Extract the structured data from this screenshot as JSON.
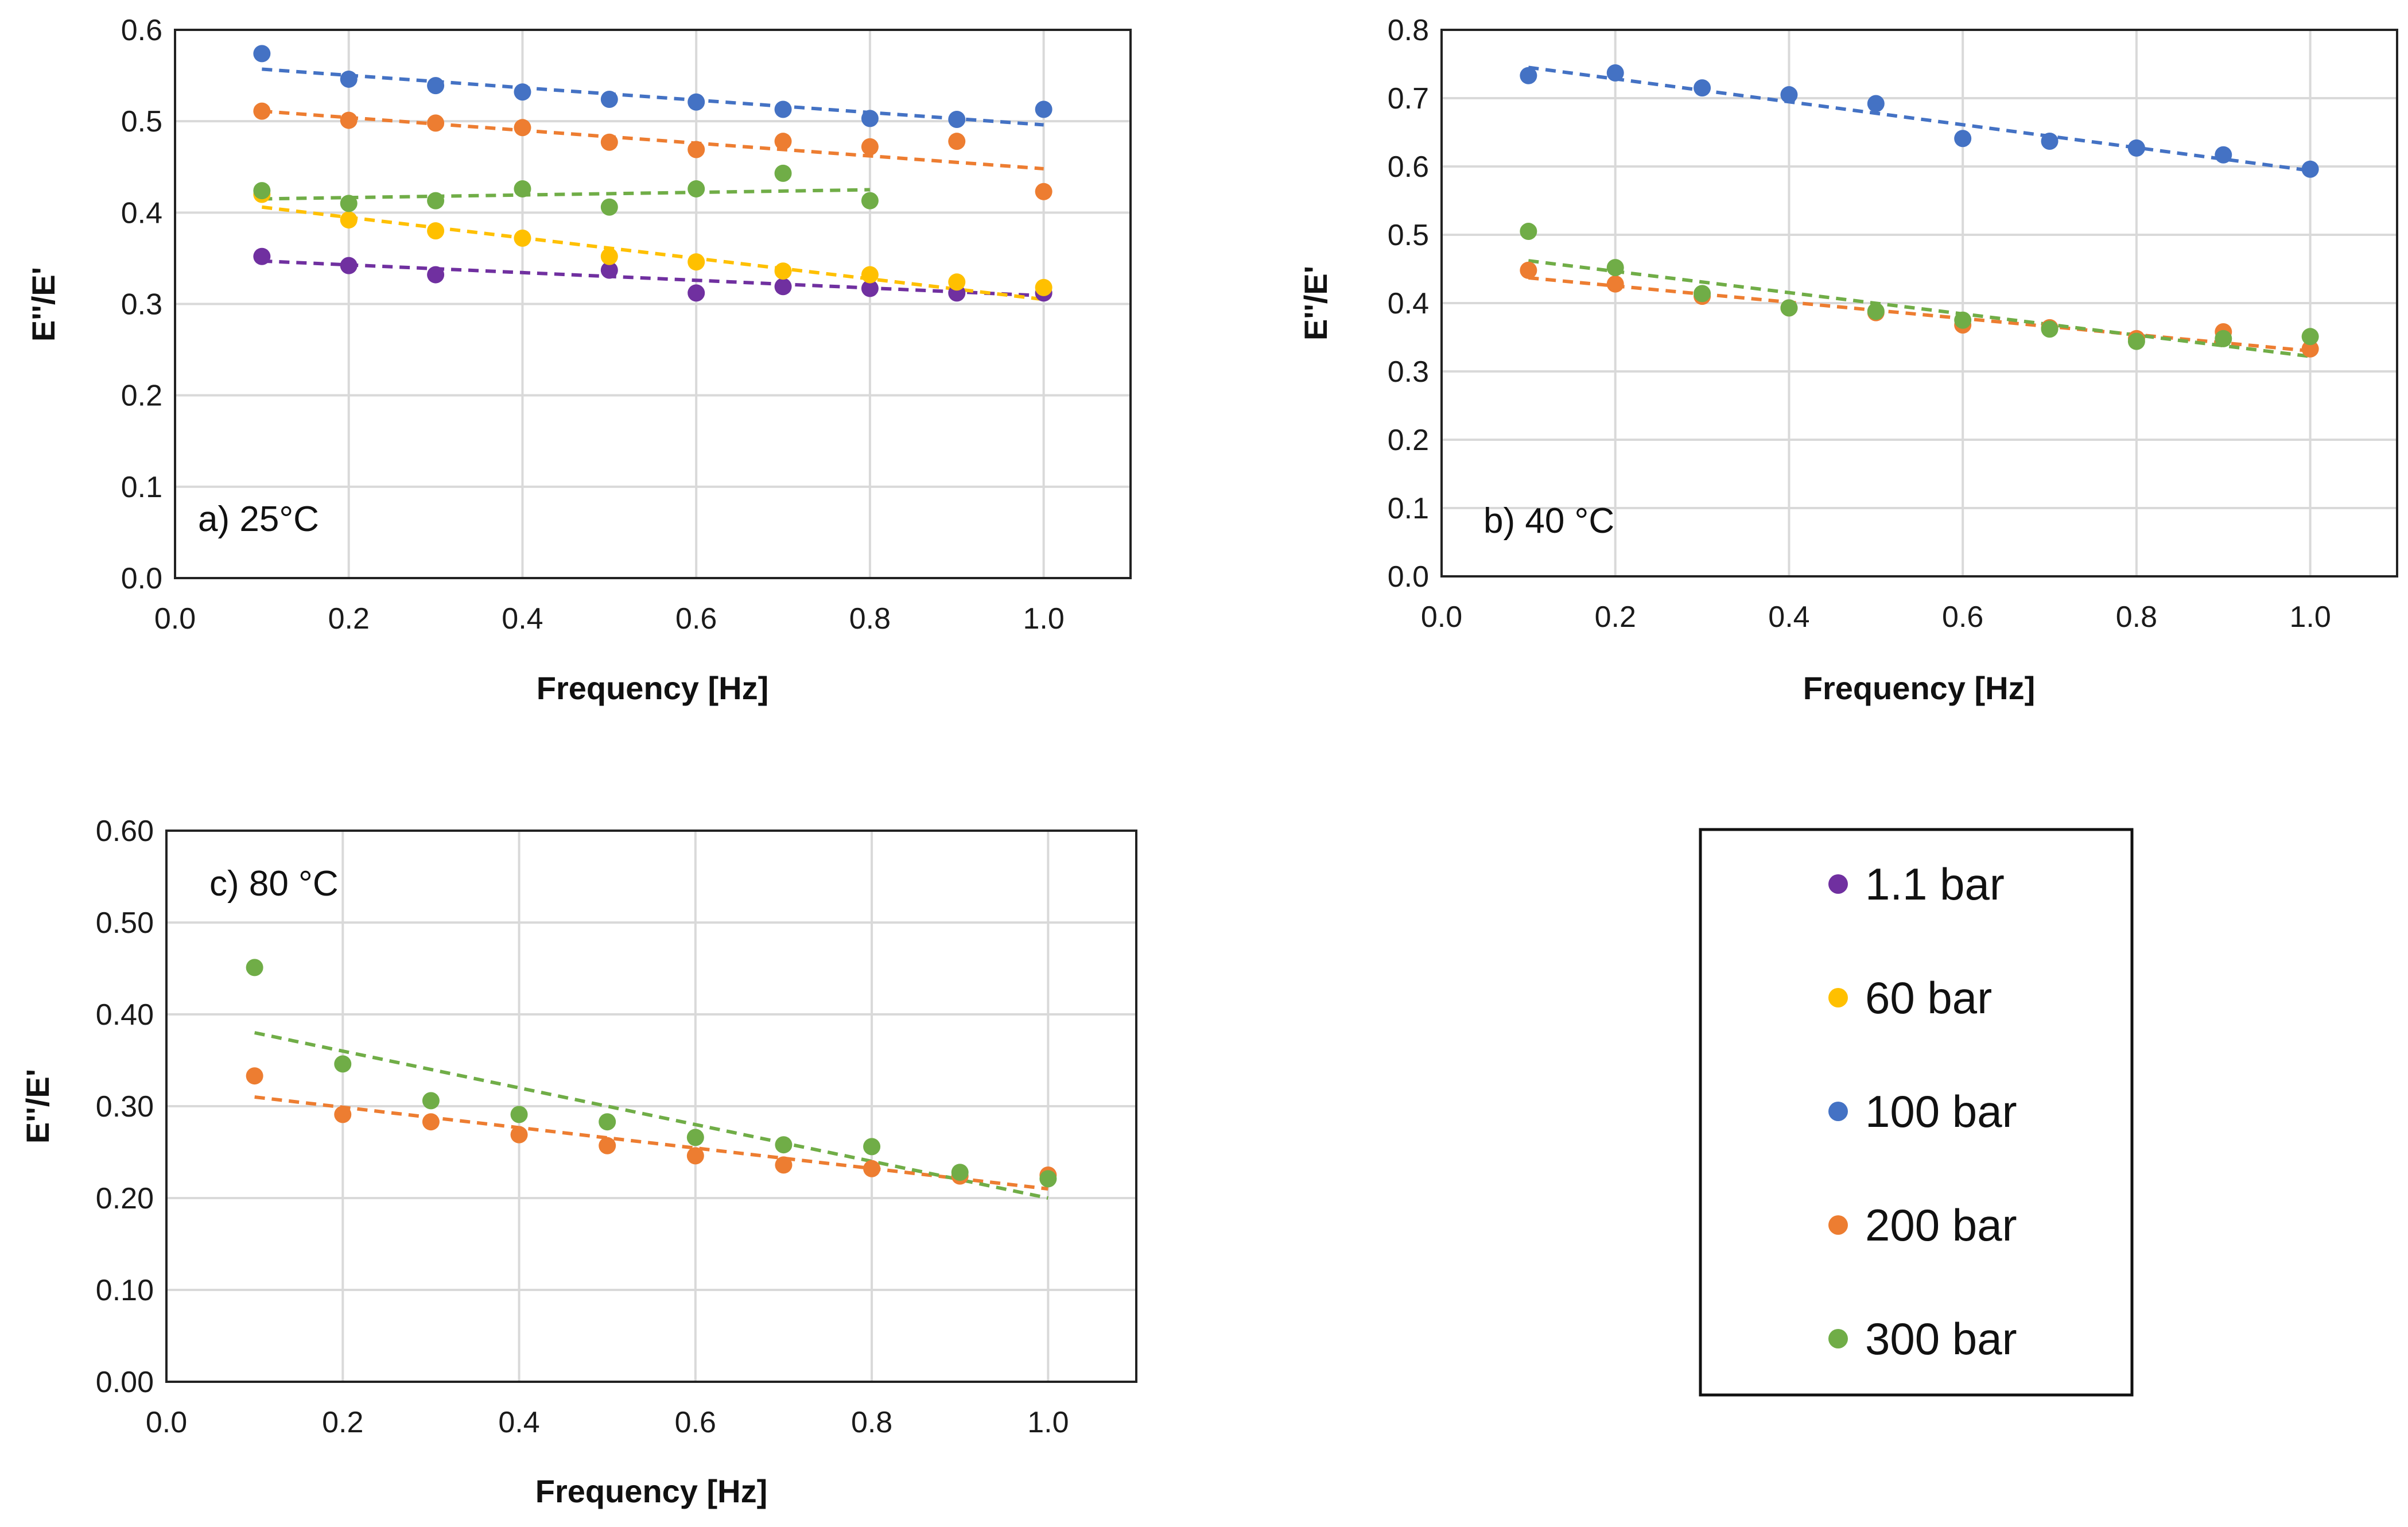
{
  "series_colors": {
    "1.1 bar": "#7030a0",
    "60 bar": "#ffc000",
    "100 bar": "#4472c4",
    "200 bar": "#ed7d31",
    "300 bar": "#70ad47"
  },
  "legend": {
    "items": [
      {
        "label": "1.1 bar",
        "color": "#7030a0"
      },
      {
        "label": "60 bar",
        "color": "#ffc000"
      },
      {
        "label": "100 bar",
        "color": "#4472c4"
      },
      {
        "label": "200 bar",
        "color": "#ed7d31"
      },
      {
        "label": "300 bar",
        "color": "#70ad47"
      }
    ]
  },
  "chart_data": [
    {
      "type": "scatter",
      "panel_label": "a) 25°C",
      "xlabel": "Frequency [Hz]",
      "ylabel": "E''/E'",
      "xlim": [
        0.0,
        1.1
      ],
      "ylim": [
        0.0,
        0.6
      ],
      "xticks": [
        "0.0",
        "0.2",
        "0.4",
        "0.6",
        "0.8",
        "1.0"
      ],
      "yticks": [
        "0.0",
        "0.1",
        "0.2",
        "0.3",
        "0.4",
        "0.5",
        "0.6"
      ],
      "series": [
        {
          "name": "1.1 bar",
          "color": "#7030a0",
          "x": [
            0.1,
            0.2,
            0.3,
            0.4,
            0.5,
            0.6,
            0.7,
            0.8,
            0.9,
            1.0
          ],
          "y": [
            0.352,
            0.342,
            0.332,
            null,
            0.337,
            0.312,
            0.319,
            0.317,
            0.312,
            0.312
          ],
          "trend": [
            [
              0.1,
              0.347
            ],
            [
              1.0,
              0.309
            ]
          ]
        },
        {
          "name": "60 bar",
          "color": "#ffc000",
          "x": [
            0.1,
            0.2,
            0.3,
            0.4,
            0.5,
            0.6,
            0.7,
            0.8,
            0.9,
            1.0
          ],
          "y": [
            0.42,
            0.392,
            0.38,
            0.372,
            0.352,
            0.346,
            0.336,
            0.332,
            0.324,
            0.318
          ],
          "trend": [
            [
              0.1,
              0.406
            ],
            [
              1.0,
              0.305
            ]
          ]
        },
        {
          "name": "100 bar",
          "color": "#4472c4",
          "x": [
            0.1,
            0.2,
            0.3,
            0.4,
            0.5,
            0.6,
            0.7,
            0.8,
            0.9,
            1.0
          ],
          "y": [
            0.574,
            0.546,
            0.539,
            0.532,
            0.524,
            0.521,
            0.513,
            0.503,
            0.502,
            0.513
          ],
          "trend": [
            [
              0.1,
              0.557
            ],
            [
              1.0,
              0.496
            ]
          ]
        },
        {
          "name": "200 bar",
          "color": "#ed7d31",
          "x": [
            0.1,
            0.2,
            0.3,
            0.4,
            0.5,
            0.6,
            0.7,
            0.8,
            0.9,
            1.0
          ],
          "y": [
            0.511,
            0.501,
            0.498,
            0.493,
            0.477,
            0.469,
            0.478,
            0.472,
            0.478,
            0.423
          ],
          "trend": [
            [
              0.1,
              0.511
            ],
            [
              1.0,
              0.448
            ]
          ]
        },
        {
          "name": "300 bar",
          "color": "#70ad47",
          "x": [
            0.1,
            0.2,
            0.3,
            0.4,
            0.5,
            0.6,
            0.7,
            0.8
          ],
          "y": [
            0.424,
            0.41,
            0.413,
            0.426,
            0.406,
            0.426,
            0.443,
            0.413
          ],
          "trend": [
            [
              0.1,
              0.415
            ],
            [
              0.8,
              0.425
            ]
          ]
        }
      ]
    },
    {
      "type": "scatter",
      "panel_label": "b) 40 °C",
      "xlabel": "Frequency [Hz]",
      "ylabel": "E''/E'",
      "xlim": [
        0.0,
        1.1
      ],
      "ylim": [
        0.0,
        0.8
      ],
      "xticks": [
        "0.0",
        "0.2",
        "0.4",
        "0.6",
        "0.8",
        "1.0"
      ],
      "yticks": [
        "0.0",
        "0.1",
        "0.2",
        "0.3",
        "0.4",
        "0.5",
        "0.6",
        "0.7",
        "0.8"
      ],
      "series": [
        {
          "name": "100 bar",
          "color": "#4472c4",
          "x": [
            0.1,
            0.2,
            0.3,
            0.4,
            0.5,
            0.6,
            0.7,
            0.8,
            0.9,
            1.0
          ],
          "y": [
            0.733,
            0.737,
            0.715,
            0.705,
            0.692,
            0.641,
            0.637,
            0.627,
            0.617,
            0.596
          ],
          "trend": [
            [
              0.1,
              0.745
            ],
            [
              1.0,
              0.594
            ]
          ]
        },
        {
          "name": "200 bar",
          "color": "#ed7d31",
          "x": [
            0.1,
            0.2,
            0.3,
            0.4,
            0.5,
            0.6,
            0.7,
            0.8,
            0.9,
            1.0
          ],
          "y": [
            0.448,
            0.428,
            0.41,
            0.393,
            0.386,
            0.368,
            0.364,
            0.348,
            0.358,
            0.333
          ],
          "trend": [
            [
              0.1,
              0.437
            ],
            [
              1.0,
              0.33
            ]
          ]
        },
        {
          "name": "300 bar",
          "color": "#70ad47",
          "x": [
            0.1,
            0.2,
            0.3,
            0.4,
            0.5,
            0.6,
            0.7,
            0.8,
            0.9,
            1.0
          ],
          "y": [
            0.505,
            0.452,
            0.414,
            0.393,
            0.388,
            0.375,
            0.362,
            0.344,
            0.348,
            0.351
          ],
          "trend": [
            [
              0.1,
              0.462
            ],
            [
              1.0,
              0.322
            ]
          ]
        }
      ]
    },
    {
      "type": "scatter",
      "panel_label": "c) 80 °C",
      "xlabel": "Frequency [Hz]",
      "ylabel": "E''/E'",
      "xlim": [
        0.0,
        1.1
      ],
      "ylim": [
        0.0,
        0.6
      ],
      "xticks": [
        "0.0",
        "0.2",
        "0.4",
        "0.6",
        "0.8",
        "1.0"
      ],
      "yticks": [
        "0.00",
        "0.10",
        "0.20",
        "0.30",
        "0.40",
        "0.50",
        "0.60"
      ],
      "series": [
        {
          "name": "200 bar",
          "color": "#ed7d31",
          "x": [
            0.1,
            0.2,
            0.3,
            0.4,
            0.5,
            0.6,
            0.7,
            0.8,
            0.9,
            1.0
          ],
          "y": [
            0.333,
            0.291,
            0.283,
            0.269,
            0.257,
            0.246,
            0.236,
            0.232,
            0.224,
            0.225
          ],
          "trend": [
            [
              0.1,
              0.31
            ],
            [
              1.0,
              0.21
            ]
          ]
        },
        {
          "name": "300 bar",
          "color": "#70ad47",
          "x": [
            0.1,
            0.2,
            0.3,
            0.4,
            0.5,
            0.6,
            0.7,
            0.8,
            0.9,
            1.0
          ],
          "y": [
            0.451,
            0.346,
            0.306,
            0.291,
            0.283,
            0.266,
            0.258,
            0.256,
            0.228,
            0.221
          ],
          "trend": [
            [
              0.1,
              0.38
            ],
            [
              1.0,
              0.2
            ]
          ]
        }
      ]
    }
  ]
}
